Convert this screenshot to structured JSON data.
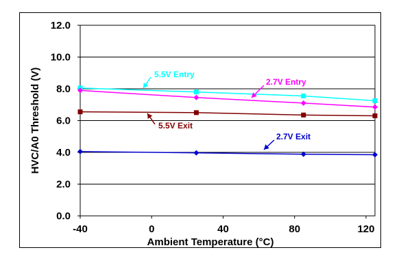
{
  "chart_data": {
    "type": "line",
    "xlabel": "Ambient Temperature (°C)",
    "ylabel": "HVC/A0 Threshold (V)",
    "xlim": [
      -40,
      125
    ],
    "ylim": [
      0,
      12
    ],
    "x_ticks": [
      -40,
      0,
      40,
      80,
      120
    ],
    "x_tick_labels": [
      "-40",
      "0",
      "40",
      "80",
      "120"
    ],
    "y_ticks": [
      0,
      2,
      4,
      6,
      8,
      10,
      12
    ],
    "y_tick_labels": [
      "0.0",
      "2.0",
      "4.0",
      "6.0",
      "8.0",
      "10.0",
      "12.0"
    ],
    "grid": "horizontal",
    "legend": "none (series labelled by callouts)",
    "series": [
      {
        "name": "5.5V Entry",
        "color": "#00ffff",
        "marker": "square",
        "x": [
          -40,
          25,
          85,
          125
        ],
        "y": [
          8.05,
          7.8,
          7.55,
          7.25
        ]
      },
      {
        "name": "2.7V Entry",
        "color": "#ff00ff",
        "marker": "diamond",
        "x": [
          -40,
          25,
          85,
          125
        ],
        "y": [
          7.9,
          7.45,
          7.1,
          6.85
        ]
      },
      {
        "name": "5.5V Exit",
        "color": "#800000",
        "marker": "square",
        "x": [
          -40,
          25,
          85,
          125
        ],
        "y": [
          6.55,
          6.5,
          6.35,
          6.3
        ]
      },
      {
        "name": "2.7V Exit",
        "color": "#0000cc",
        "marker": "diamond",
        "x": [
          -40,
          25,
          85,
          125
        ],
        "y": [
          4.05,
          3.97,
          3.88,
          3.85
        ]
      }
    ],
    "annotations": [
      {
        "text": "5.5V Entry",
        "color": "#00ffff"
      },
      {
        "text": "2.7V Entry",
        "color": "#ff00ff"
      },
      {
        "text": "5.5V Exit",
        "color": "#800000"
      },
      {
        "text": "2.7V Exit",
        "color": "#0000cc"
      }
    ]
  }
}
